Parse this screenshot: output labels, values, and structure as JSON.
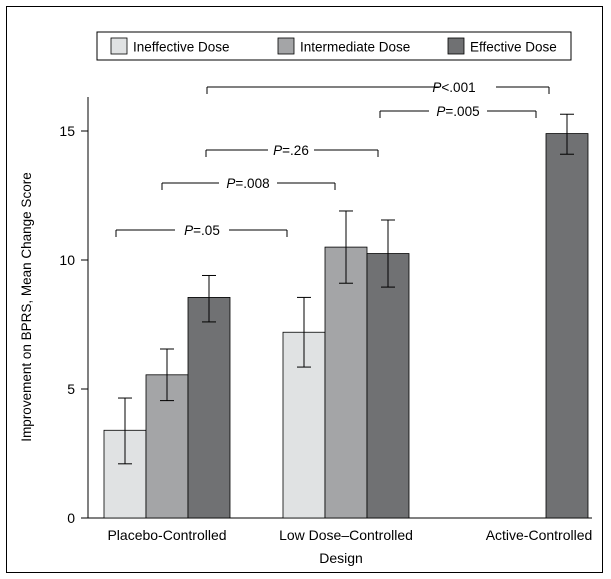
{
  "colors": {
    "ineffective": "#e0e2e3",
    "intermediate": "#a4a5a7",
    "effective": "#707173",
    "axis": "#000000"
  },
  "chart_data": {
    "type": "bar",
    "xlabel": "Design",
    "ylabel": "Improvement on BPRS, Mean Change Score",
    "ylim": [
      0,
      15.6
    ],
    "yticks": [
      0,
      5,
      10,
      15
    ],
    "grid": false,
    "legend_placement": "top",
    "categories": [
      "Placebo-Controlled",
      "Low Dose–Controlled",
      "Active-Controlled"
    ],
    "series": [
      {
        "name": "Ineffective Dose",
        "values": [
          3.4,
          7.2,
          null
        ],
        "err_low": [
          2.1,
          5.85,
          null
        ],
        "err_high": [
          4.65,
          8.55,
          null
        ]
      },
      {
        "name": "Intermediate Dose",
        "values": [
          5.55,
          10.5,
          null
        ],
        "err_low": [
          4.55,
          9.1,
          null
        ],
        "err_high": [
          6.55,
          11.9,
          null
        ]
      },
      {
        "name": "Effective Dose",
        "values": [
          8.55,
          10.25,
          14.9
        ],
        "err_low": [
          7.6,
          8.95,
          14.1
        ],
        "err_high": [
          9.4,
          11.55,
          15.65
        ]
      }
    ],
    "comparisons": [
      {
        "label": "P<.001",
        "italic_part": "P",
        "rest": "<.001"
      },
      {
        "label": "P=.005",
        "italic_part": "P",
        "rest": "=.005"
      },
      {
        "label": "P=.26",
        "italic_part": "P",
        "rest": "=.26"
      },
      {
        "label": "P=.008",
        "italic_part": "P",
        "rest": "=.008"
      },
      {
        "label": "P=.05",
        "italic_part": "P",
        "rest": "=.05"
      }
    ]
  }
}
